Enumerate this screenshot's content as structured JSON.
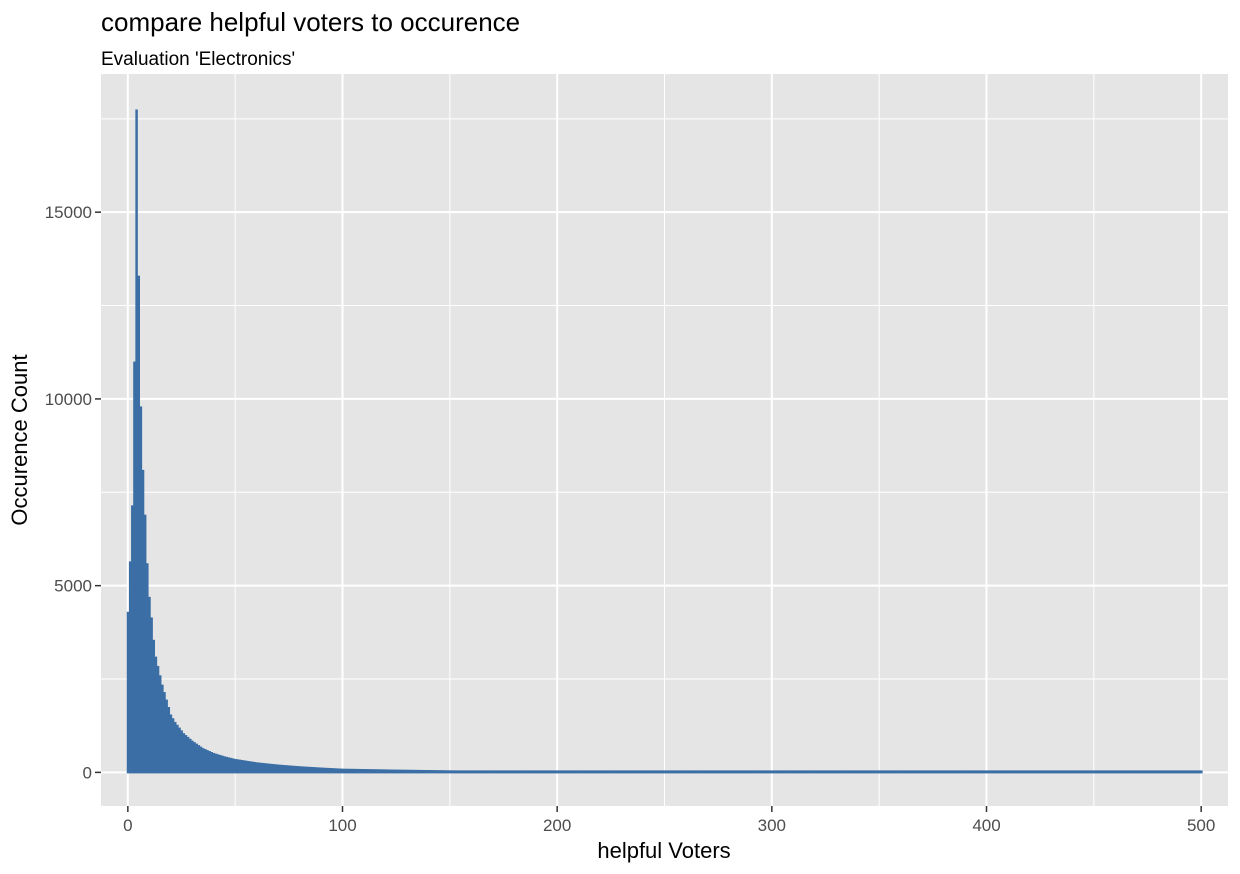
{
  "chart_data": {
    "type": "bar",
    "title": "compare helpful voters to occurence",
    "subtitle": "Evaluation 'Electronics'",
    "xlabel": "helpful Voters",
    "ylabel": "Occurence Count",
    "xlim": [
      -12.5,
      512.5
    ],
    "ylim": [
      -900,
      18700
    ],
    "x_major_ticks": [
      0,
      100,
      200,
      300,
      400,
      500
    ],
    "x_tick_labels": [
      "0",
      "100",
      "200",
      "300",
      "400",
      "500"
    ],
    "x_minor_ticks": [
      50,
      150,
      250,
      350,
      450
    ],
    "y_major_ticks": [
      0,
      5000,
      10000,
      15000
    ],
    "y_tick_labels": [
      "0",
      "5000",
      "10000",
      "15000"
    ],
    "y_minor_ticks": [
      2500,
      7500,
      12500,
      17500
    ],
    "grid": true,
    "legend": "none",
    "bar_color": "#3a6ea5",
    "panel_color": "#e5e5e5",
    "grid_color": "#ffffff",
    "x": [
      0,
      1,
      2,
      3,
      4,
      5,
      6,
      7,
      8,
      9,
      10,
      11,
      12,
      13,
      14,
      15,
      16,
      17,
      18,
      19,
      20,
      22,
      24,
      26,
      28,
      30,
      35,
      40,
      45,
      50,
      60,
      70,
      80,
      90,
      100,
      125,
      150,
      200,
      250,
      300,
      350,
      400,
      450,
      500
    ],
    "values": [
      4300,
      5650,
      7150,
      11000,
      17750,
      13300,
      9800,
      8100,
      6900,
      5600,
      4700,
      4150,
      3550,
      3100,
      2850,
      2600,
      2350,
      2150,
      1950,
      1750,
      1550,
      1350,
      1200,
      1050,
      950,
      850,
      650,
      520,
      430,
      360,
      270,
      210,
      165,
      130,
      100,
      75,
      55,
      35,
      25,
      15,
      12,
      10,
      8,
      5
    ]
  }
}
